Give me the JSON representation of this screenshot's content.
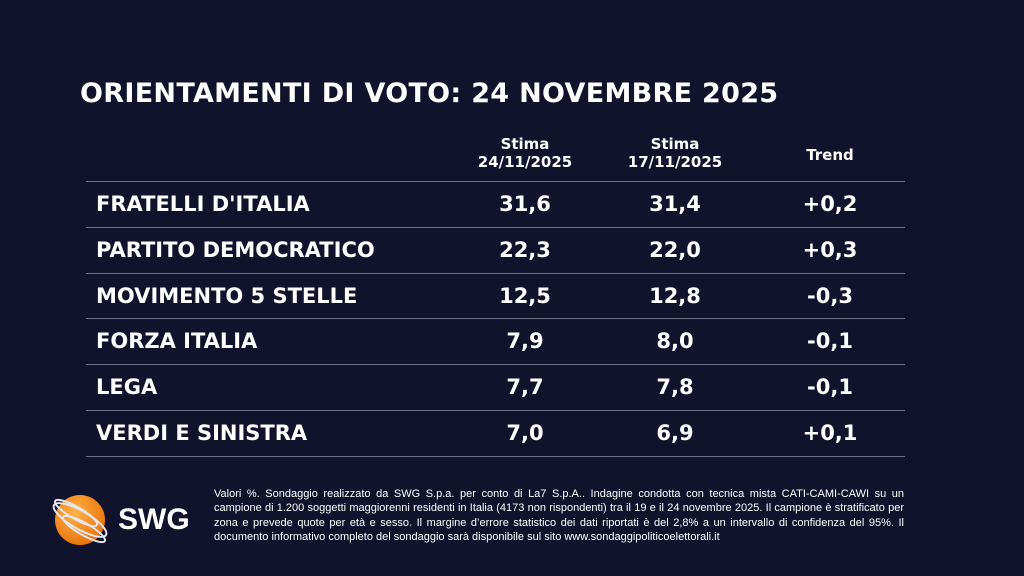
{
  "title": "ORIENTAMENTI DI VOTO: 24 NOVEMBRE 2025",
  "headers": {
    "col1_line1": "Stima",
    "col1_line2": "24/11/2025",
    "col2_line1": "Stima",
    "col2_line2": "17/11/2025",
    "col3": "Trend"
  },
  "rows": [
    {
      "party": "FRATELLI D'ITALIA",
      "current": "31,6",
      "previous": "31,4",
      "trend": "+0,2"
    },
    {
      "party": "PARTITO DEMOCRATICO",
      "current": "22,3",
      "previous": "22,0",
      "trend": "+0,3"
    },
    {
      "party": "MOVIMENTO 5 STELLE",
      "current": "12,5",
      "previous": "12,8",
      "trend": "-0,3"
    },
    {
      "party": "FORZA ITALIA",
      "current": "7,9",
      "previous": "8,0",
      "trend": "-0,1"
    },
    {
      "party": "LEGA",
      "current": "7,7",
      "previous": "7,8",
      "trend": "-0,1"
    },
    {
      "party": "VERDI E SINISTRA",
      "current": "7,0",
      "previous": "6,9",
      "trend": "+0,1"
    }
  ],
  "logo": {
    "text": "SWG",
    "icon": "orange-globe-icon",
    "color": "#f7931e"
  },
  "footnote": "Valori %. Sondaggio realizzato da SWG S.p.a. per conto di La7 S.p.A.. Indagine condotta con tecnica mista CATI-CAMI-CAWI su un campione di 1.200 soggetti maggiorenni residenti in Italia (4173 non rispondenti) tra il 19 e il 24 novembre 2025. Il campione è stratificato per zona e prevede quote per età e sesso. Il margine d’errore statistico dei dati riportati è del 2,8% a un intervallo di confidenza del 95%. Il documento informativo completo del sondaggio sarà disponibile sul sito www.sondaggipoliticoelettorali.it",
  "colors": {
    "background": "#11132d",
    "text": "#ffffff",
    "divider": "#6b6e85"
  }
}
